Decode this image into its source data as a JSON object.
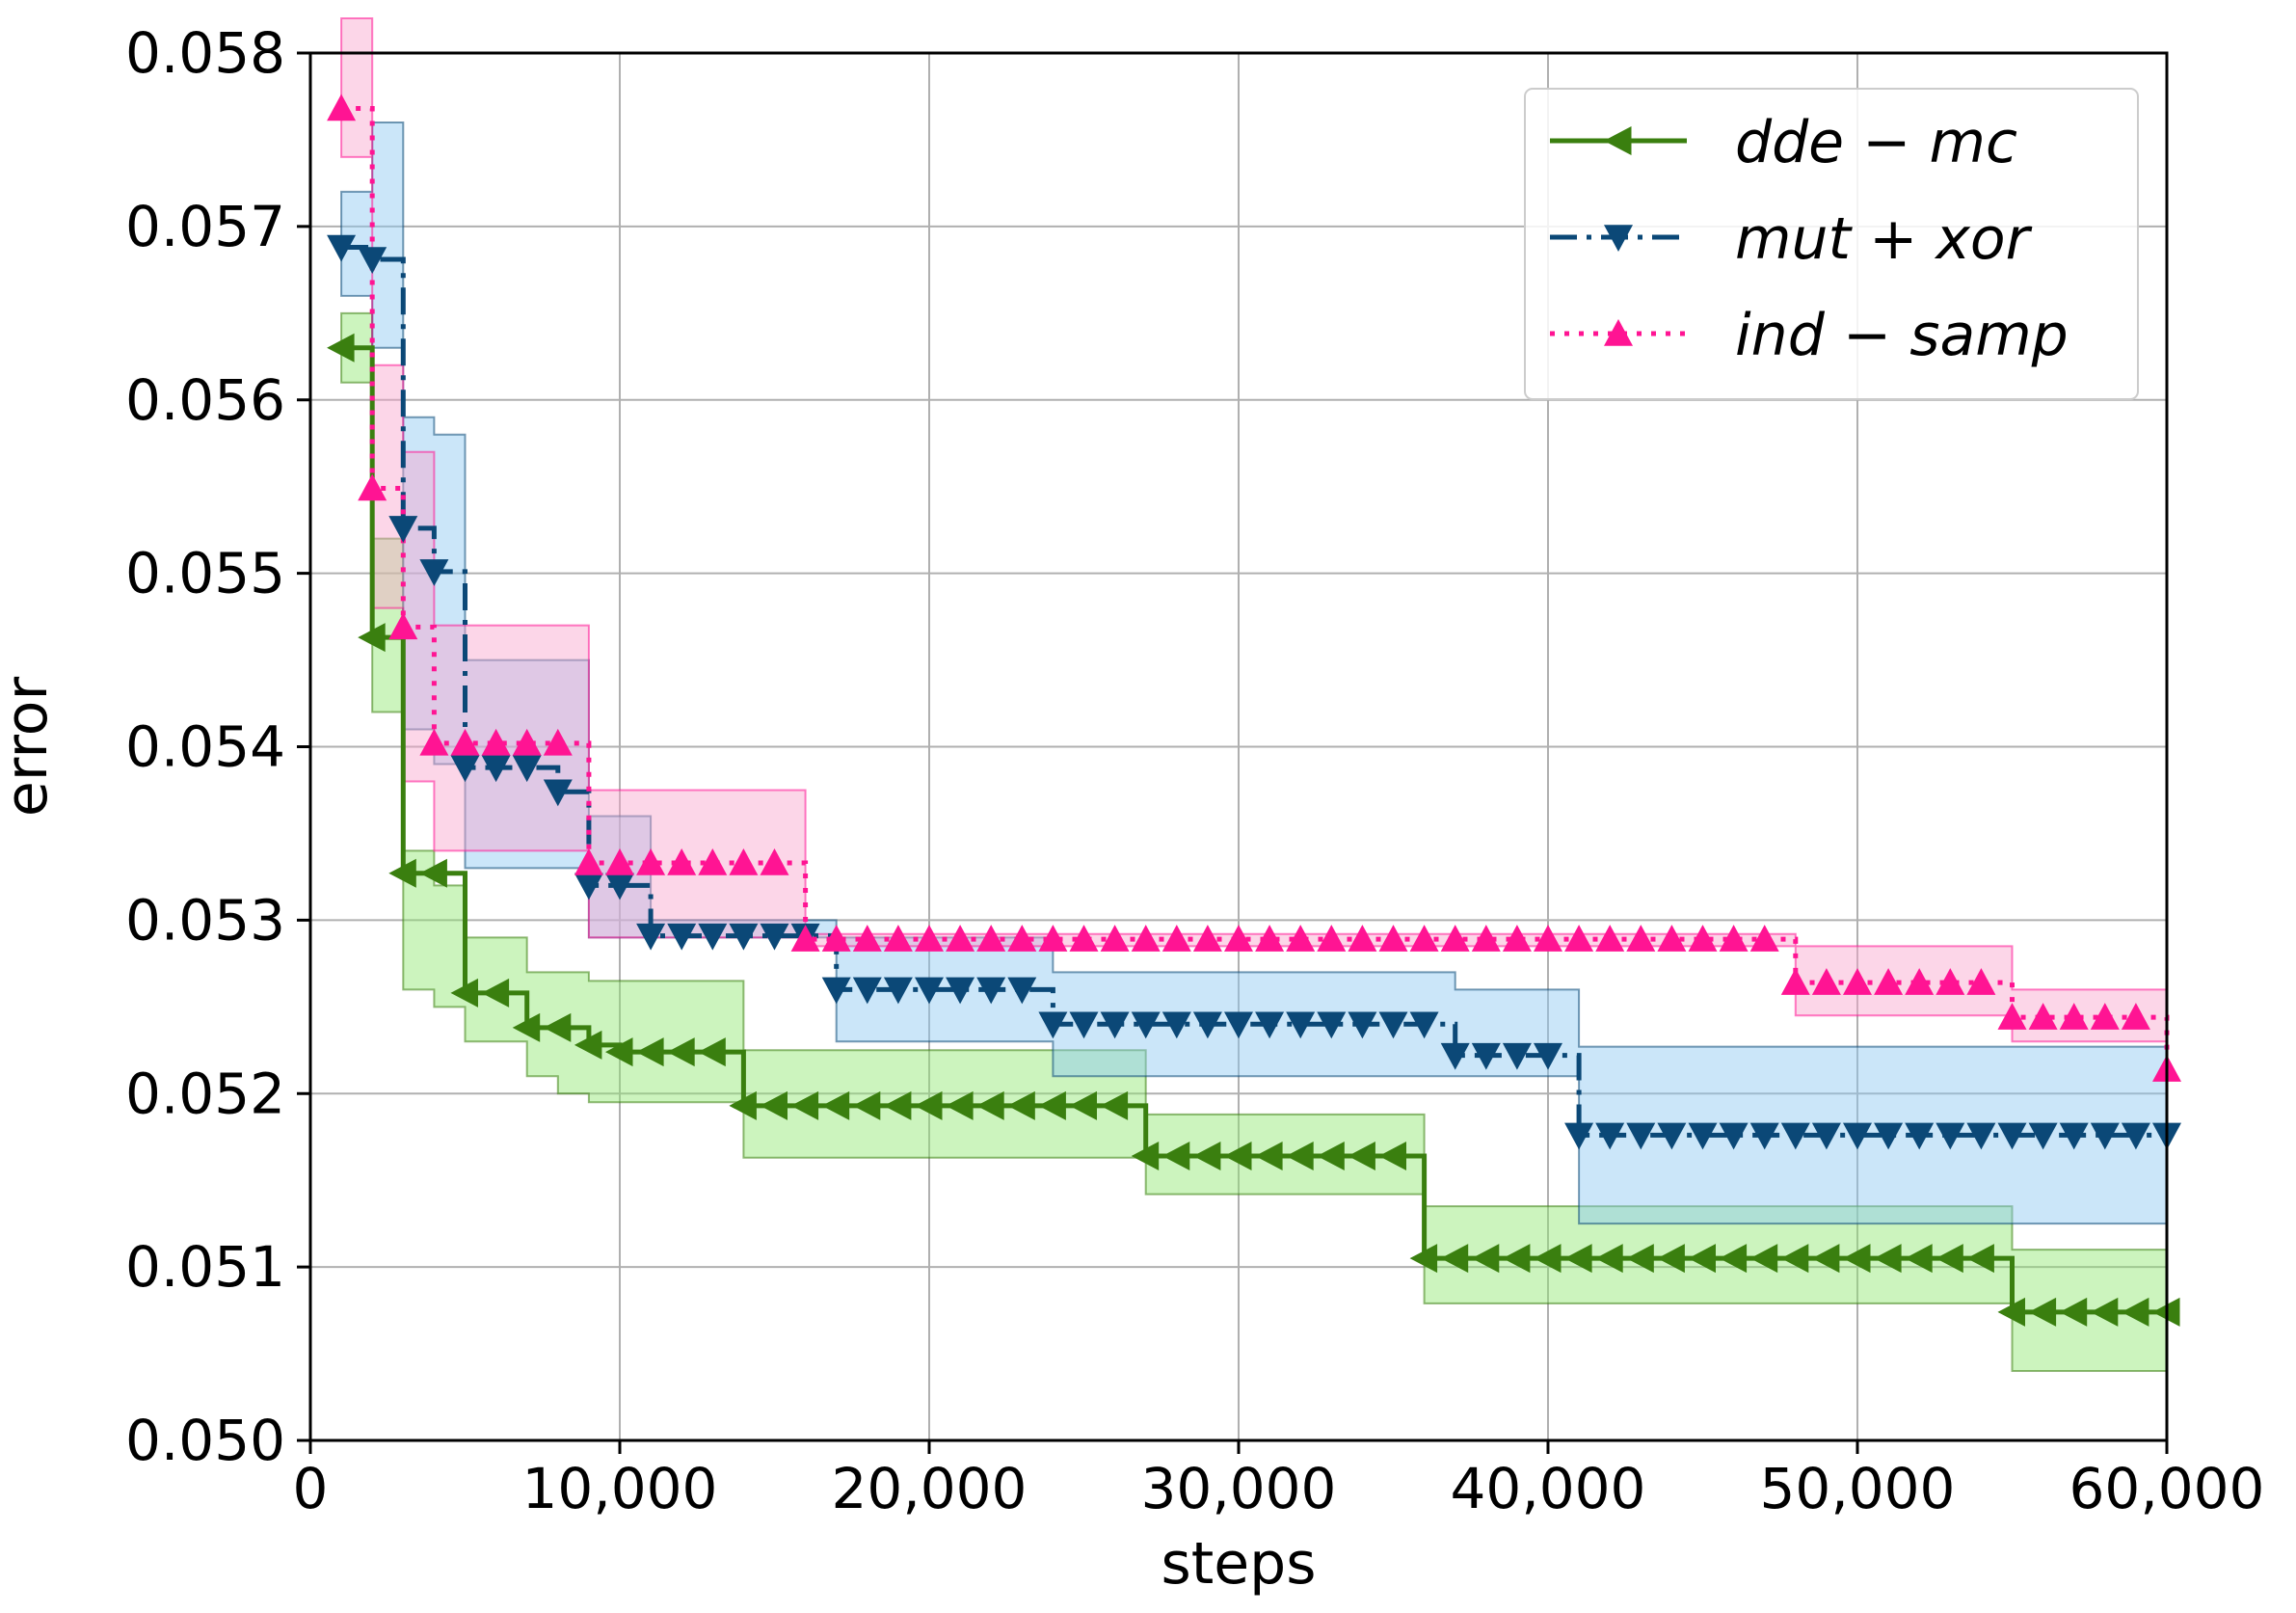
{
  "chart_data": {
    "type": "line",
    "xlabel": "steps",
    "ylabel": "error",
    "xlim": [
      0,
      60000
    ],
    "ylim": [
      0.05,
      0.058
    ],
    "xticks": [
      0,
      10000,
      20000,
      30000,
      40000,
      50000,
      60000
    ],
    "xtick_labels": [
      "0",
      "10,000",
      "20,000",
      "30,000",
      "40,000",
      "50,000",
      "60,000"
    ],
    "yticks": [
      0.05,
      0.051,
      0.052,
      0.053,
      0.054,
      0.055,
      0.056,
      0.057,
      0.058
    ],
    "ytick_labels": [
      "0.050",
      "0.051",
      "0.052",
      "0.053",
      "0.054",
      "0.055",
      "0.056",
      "0.057",
      "0.058"
    ],
    "grid": true,
    "legend_position": "top-right",
    "series": [
      {
        "name": "dde − mc",
        "color": "#3a7f0f",
        "fill_color": "#8ee66e",
        "marker": "triangle-left",
        "linestyle": "solid",
        "steps": [
          [
            1000,
            0.0563
          ],
          [
            2000,
            0.05463
          ],
          [
            3000,
            0.05327
          ],
          [
            4000,
            0.05327
          ],
          [
            5000,
            0.05258
          ],
          [
            6000,
            0.05258
          ],
          [
            7000,
            0.05238
          ],
          [
            8000,
            0.05238
          ],
          [
            9000,
            0.05228
          ],
          [
            10000,
            0.05224
          ],
          [
            11000,
            0.05224
          ],
          [
            12000,
            0.05224
          ],
          [
            13000,
            0.05224
          ],
          [
            14000,
            0.05193
          ],
          [
            26000,
            0.05193
          ],
          [
            27000,
            0.05164
          ],
          [
            35000,
            0.05164
          ],
          [
            36000,
            0.05105
          ],
          [
            54000,
            0.05105
          ],
          [
            55000,
            0.05074
          ],
          [
            60000,
            0.05074
          ]
        ],
        "band": [
          [
            1000,
            0.0561,
            0.0565
          ],
          [
            2000,
            0.0542,
            0.0552
          ],
          [
            3000,
            0.0526,
            0.0534
          ],
          [
            4000,
            0.0525,
            0.0532
          ],
          [
            5000,
            0.0523,
            0.0529
          ],
          [
            6000,
            0.0523,
            0.0529
          ],
          [
            7000,
            0.0521,
            0.0527
          ],
          [
            8000,
            0.052,
            0.0527
          ],
          [
            9000,
            0.05195,
            0.05265
          ],
          [
            10000,
            0.05195,
            0.05265
          ],
          [
            13000,
            0.05195,
            0.05265
          ],
          [
            14000,
            0.05163,
            0.05225
          ],
          [
            26000,
            0.05163,
            0.05225
          ],
          [
            27000,
            0.05142,
            0.05188
          ],
          [
            35000,
            0.05142,
            0.05188
          ],
          [
            36000,
            0.05079,
            0.05135
          ],
          [
            54000,
            0.05079,
            0.05135
          ],
          [
            55000,
            0.0504,
            0.0511
          ],
          [
            60000,
            0.0504,
            0.0511
          ]
        ],
        "marker_interval": 1000
      },
      {
        "name": "mut + xor",
        "color": "#0b4877",
        "fill_color": "#8cc8f2",
        "marker": "triangle-down",
        "linestyle": "dashdot",
        "steps": [
          [
            1000,
            0.05688
          ],
          [
            2000,
            0.05681
          ],
          [
            3000,
            0.05526
          ],
          [
            4000,
            0.05501
          ],
          [
            5000,
            0.05388
          ],
          [
            6000,
            0.05388
          ],
          [
            7000,
            0.05388
          ],
          [
            8000,
            0.05374
          ],
          [
            9000,
            0.0532
          ],
          [
            10000,
            0.0532
          ],
          [
            11000,
            0.05291
          ],
          [
            16000,
            0.05291
          ],
          [
            17000,
            0.0526
          ],
          [
            23000,
            0.0526
          ],
          [
            24000,
            0.0524
          ],
          [
            36000,
            0.0524
          ],
          [
            37000,
            0.05222
          ],
          [
            40000,
            0.05222
          ],
          [
            41000,
            0.05176
          ],
          [
            60000,
            0.05176
          ]
        ],
        "band": [
          [
            1000,
            0.0566,
            0.0572
          ],
          [
            2000,
            0.0563,
            0.0576
          ],
          [
            3000,
            0.0541,
            0.0559
          ],
          [
            4000,
            0.0539,
            0.0558
          ],
          [
            5000,
            0.0533,
            0.0545
          ],
          [
            8000,
            0.0533,
            0.0545
          ],
          [
            9000,
            0.0529,
            0.0536
          ],
          [
            11000,
            0.0529,
            0.053
          ],
          [
            16000,
            0.0529,
            0.053
          ],
          [
            17000,
            0.0523,
            0.0529
          ],
          [
            23000,
            0.0523,
            0.0529
          ],
          [
            24000,
            0.0521,
            0.0527
          ],
          [
            36000,
            0.0521,
            0.0527
          ],
          [
            37000,
            0.0521,
            0.0526
          ],
          [
            40000,
            0.0521,
            0.0526
          ],
          [
            41000,
            0.05125,
            0.05227
          ],
          [
            60000,
            0.05125,
            0.05227
          ]
        ],
        "marker_interval": 1000
      },
      {
        "name": "ind − samp",
        "color": "#ff1493",
        "fill_color": "#f9a3cc",
        "marker": "triangle-up",
        "linestyle": "dotted",
        "steps": [
          [
            1000,
            0.05768
          ],
          [
            2000,
            0.05549
          ],
          [
            3000,
            0.05469
          ],
          [
            4000,
            0.05402
          ],
          [
            9000,
            0.05333
          ],
          [
            15000,
            0.05333
          ],
          [
            16000,
            0.05289
          ],
          [
            47000,
            0.05289
          ],
          [
            48000,
            0.05264
          ],
          [
            54000,
            0.05264
          ],
          [
            55000,
            0.05244
          ],
          [
            60000,
            0.05214
          ]
        ],
        "band": [
          [
            1000,
            0.0574,
            0.0582
          ],
          [
            2000,
            0.0548,
            0.0562
          ],
          [
            3000,
            0.0538,
            0.0557
          ],
          [
            4000,
            0.0534,
            0.0547
          ],
          [
            8000,
            0.0534,
            0.0547
          ],
          [
            9000,
            0.0529,
            0.05375
          ],
          [
            15000,
            0.0529,
            0.05375
          ],
          [
            16000,
            0.05285,
            0.05292
          ],
          [
            47000,
            0.05285,
            0.05292
          ],
          [
            48000,
            0.05245,
            0.05285
          ],
          [
            54000,
            0.05245,
            0.05285
          ],
          [
            55000,
            0.0523,
            0.0526
          ],
          [
            60000,
            0.0519,
            0.0524
          ]
        ],
        "marker_interval": 1000
      }
    ]
  }
}
